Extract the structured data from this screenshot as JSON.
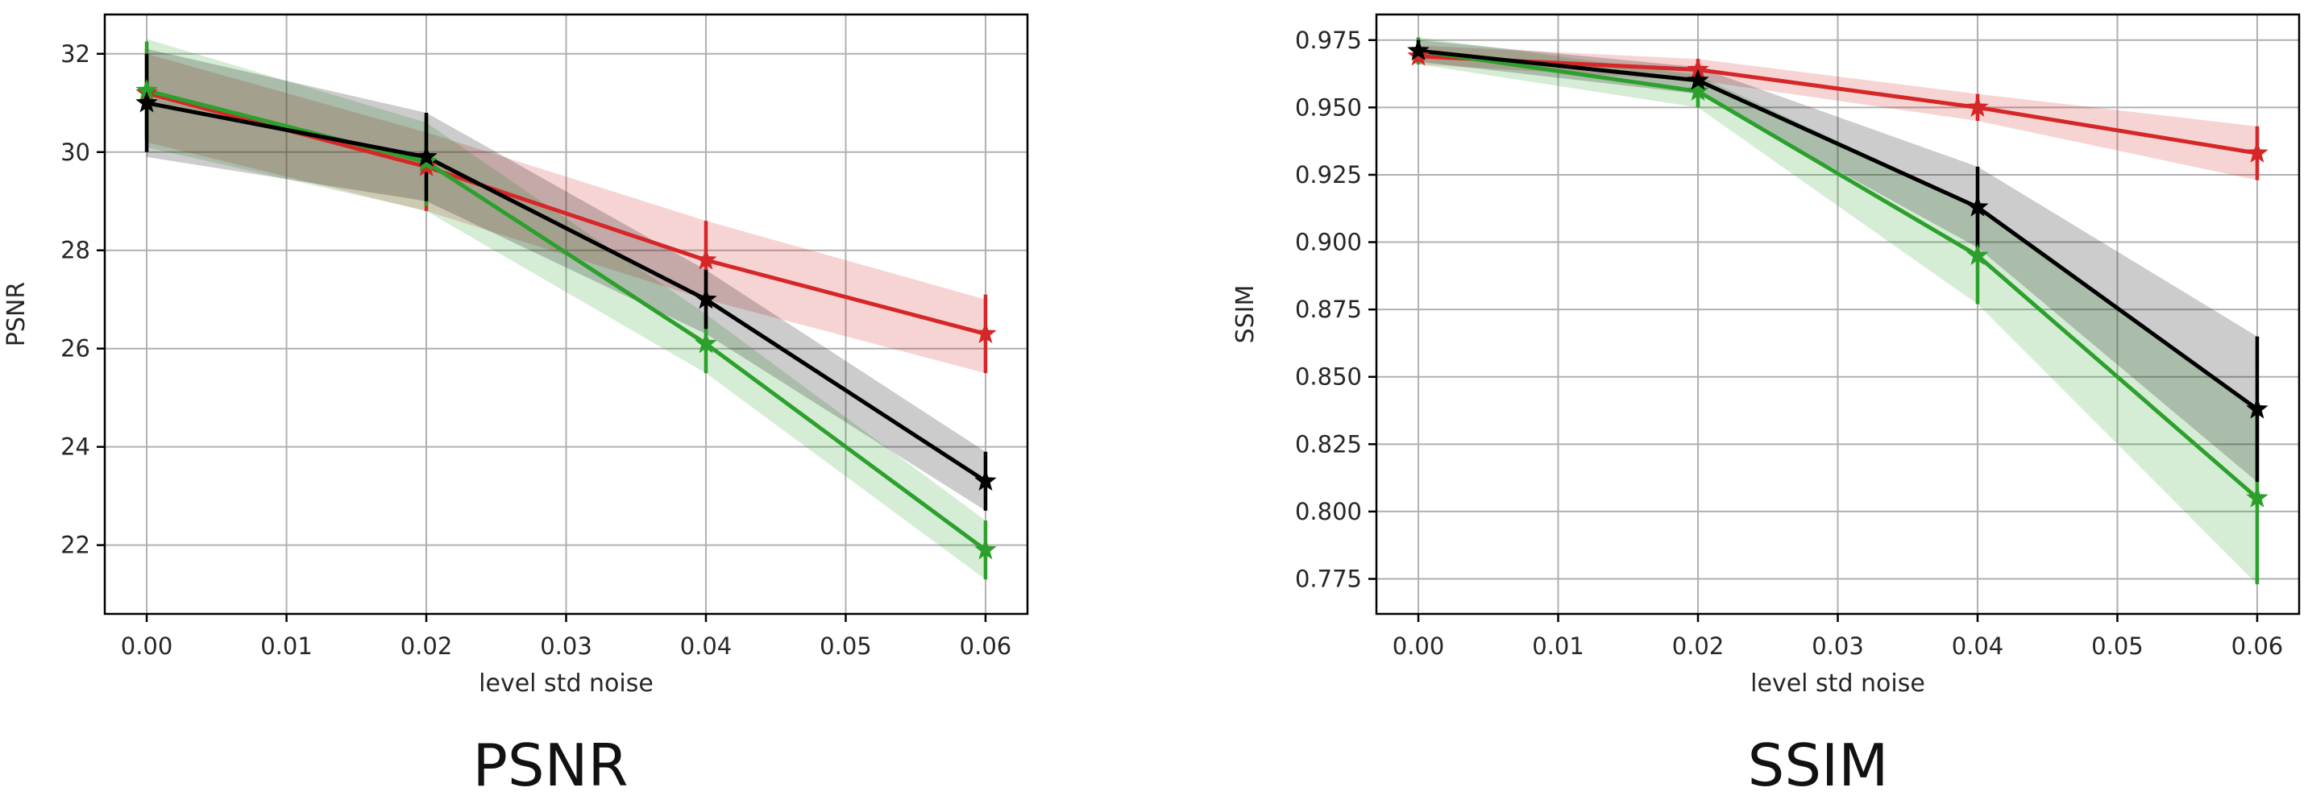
{
  "chart_data": [
    {
      "type": "line",
      "caption": "PSNR",
      "xlabel": "level std noise",
      "ylabel": "PSNR",
      "x": [
        0.0,
        0.02,
        0.04,
        0.06
      ],
      "xticks": [
        "0.00",
        "0.01",
        "0.02",
        "0.03",
        "0.04",
        "0.05",
        "0.06"
      ],
      "yticks": [
        "22",
        "24",
        "26",
        "28",
        "30",
        "32"
      ],
      "xlim": [
        -0.003,
        0.063
      ],
      "ylim": [
        20.6,
        32.8
      ],
      "grid": true,
      "series": [
        {
          "color": "#d62728",
          "marker": "star",
          "values": [
            31.2,
            29.7,
            27.8,
            26.3
          ],
          "err": [
            0.9,
            0.9,
            0.8,
            0.8
          ],
          "band_low": [
            30.2,
            28.8,
            27.0,
            25.5
          ],
          "band_high": [
            32.0,
            30.4,
            28.6,
            27.0
          ]
        },
        {
          "color": "#2ca02c",
          "marker": "star",
          "values": [
            31.25,
            29.8,
            26.1,
            21.9
          ],
          "err": [
            1.0,
            0.9,
            0.6,
            0.6
          ],
          "band_low": [
            30.1,
            28.8,
            25.5,
            21.3
          ],
          "band_high": [
            32.3,
            30.6,
            26.7,
            22.5
          ]
        },
        {
          "color": "#000000",
          "marker": "star",
          "values": [
            31.0,
            29.9,
            27.0,
            23.3
          ],
          "err": [
            1.0,
            0.9,
            0.6,
            0.6
          ],
          "band_low": [
            29.9,
            29.0,
            26.3,
            22.7
          ],
          "band_high": [
            32.1,
            30.8,
            27.6,
            23.9
          ]
        }
      ]
    },
    {
      "type": "line",
      "caption": "SSIM",
      "xlabel": "level std noise",
      "ylabel": "SSIM",
      "x": [
        0.0,
        0.02,
        0.04,
        0.06
      ],
      "xticks": [
        "0.00",
        "0.01",
        "0.02",
        "0.03",
        "0.04",
        "0.05",
        "0.06"
      ],
      "yticks": [
        "0.775",
        "0.800",
        "0.825",
        "0.850",
        "0.875",
        "0.900",
        "0.925",
        "0.950",
        "0.975"
      ],
      "xlim": [
        -0.003,
        0.063
      ],
      "ylim": [
        0.762,
        0.9845
      ],
      "grid": true,
      "series": [
        {
          "color": "#d62728",
          "marker": "star",
          "values": [
            0.969,
            0.964,
            0.95,
            0.933
          ],
          "err": [
            0.003,
            0.004,
            0.005,
            0.01
          ],
          "band_low": [
            0.966,
            0.96,
            0.945,
            0.923
          ],
          "band_high": [
            0.973,
            0.968,
            0.955,
            0.943
          ]
        },
        {
          "color": "#2ca02c",
          "marker": "star",
          "values": [
            0.971,
            0.956,
            0.895,
            0.805
          ],
          "err": [
            0.005,
            0.006,
            0.018,
            0.032
          ],
          "band_low": [
            0.966,
            0.95,
            0.877,
            0.773
          ],
          "band_high": [
            0.976,
            0.962,
            0.913,
            0.837
          ]
        },
        {
          "color": "#000000",
          "marker": "star",
          "values": [
            0.971,
            0.96,
            0.913,
            0.838
          ],
          "err": [
            0.004,
            0.005,
            0.015,
            0.027
          ],
          "band_low": [
            0.967,
            0.955,
            0.898,
            0.811
          ],
          "band_high": [
            0.975,
            0.965,
            0.928,
            0.865
          ]
        }
      ]
    }
  ]
}
